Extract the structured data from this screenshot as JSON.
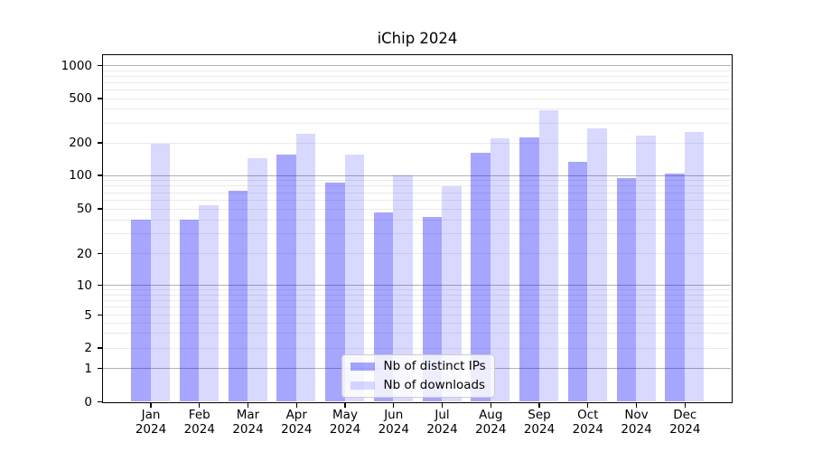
{
  "chart_data": {
    "type": "bar",
    "title": "iChip 2024",
    "categories": [
      "Jan 2024",
      "Feb 2024",
      "Mar 2024",
      "Apr 2024",
      "May 2024",
      "Jun 2024",
      "Jul 2024",
      "Aug 2024",
      "Sep 2024",
      "Oct 2024",
      "Nov 2024",
      "Dec 2024"
    ],
    "series": [
      {
        "key": "ips",
        "name": "Nb of distinct IPs",
        "color": "#0000FF59",
        "values": [
          40,
          40,
          72,
          153,
          86,
          46,
          42,
          161,
          221,
          131,
          93,
          102
        ]
      },
      {
        "key": "downloads",
        "name": "Nb of downloads",
        "color": "#0000FF26",
        "values": [
          195,
          53,
          144,
          238,
          155,
          100,
          79,
          218,
          390,
          266,
          229,
          246
        ]
      }
    ],
    "y_axis": {
      "scale": "symlog",
      "ticks": [
        0,
        1,
        2,
        5,
        10,
        20,
        50,
        100,
        200,
        500,
        1000
      ],
      "range": [
        0,
        1000
      ]
    },
    "x_axis": {
      "label_lines": 2
    },
    "grid": {
      "major": true,
      "minor": true
    },
    "legend": {
      "position": "lower center"
    }
  }
}
